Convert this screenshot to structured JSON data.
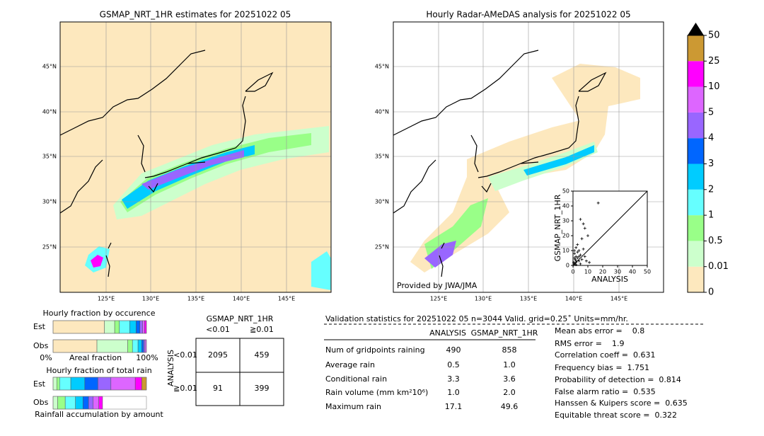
{
  "left_map": {
    "title": "GSMAP_NRT_1HR estimates for 20251022 05",
    "lat_labels": [
      "45°N",
      "40°N",
      "35°N",
      "30°N",
      "25°N"
    ],
    "lon_labels": [
      "125°E",
      "130°E",
      "135°E",
      "140°E",
      "145°E"
    ]
  },
  "right_map": {
    "title": "Hourly Radar-AMeDAS analysis for 20251022 05",
    "lat_labels": [
      "45°N",
      "40°N",
      "35°N",
      "30°N",
      "25°N"
    ],
    "lon_labels": [
      "125°E",
      "130°E",
      "135°E",
      "140°E",
      "145°E"
    ],
    "credit": "Provided by JWA/JMA"
  },
  "colorbar": {
    "labels": [
      0,
      0.01,
      0.5,
      1,
      2,
      3,
      4,
      5,
      10,
      25,
      50
    ],
    "colors": [
      "#fde8be",
      "#ccffcc",
      "#99ff88",
      "#66ffff",
      "#00ccff",
      "#0066ff",
      "#9966ff",
      "#dd66ff",
      "#ff00ff",
      "#cc9933"
    ]
  },
  "scatter": {
    "xlabel": "ANALYSIS",
    "ylabel": "GSMAP_NRT_1HR",
    "xlim": [
      0,
      50
    ],
    "ylim": [
      0,
      50
    ],
    "xticks": [
      0,
      10,
      20,
      30,
      40,
      50
    ],
    "yticks": [
      0,
      10,
      20,
      30,
      40,
      50
    ],
    "x": [
      17,
      8,
      7,
      5,
      10,
      6,
      3,
      2,
      4,
      1,
      2,
      5,
      3,
      1,
      6,
      4,
      2,
      8,
      1,
      3,
      7,
      2,
      0.5,
      1.5,
      9,
      11,
      5,
      2,
      4,
      1
    ],
    "y": [
      42,
      25,
      28,
      31,
      20,
      18,
      14,
      12,
      10,
      8,
      6,
      7,
      9,
      5,
      4,
      3,
      2,
      6,
      1,
      5,
      11,
      3,
      2,
      4,
      3,
      2,
      1,
      0.5,
      6,
      10
    ]
  },
  "fraction_occurrence": {
    "title": "Hourly fraction by occurence",
    "rows": [
      {
        "label": "Est",
        "values": [
          55,
          11,
          5,
          11,
          7,
          4,
          3,
          2,
          2,
          0
        ]
      },
      {
        "label": "Obs",
        "values": [
          47,
          33,
          5,
          6,
          4,
          2,
          1.5,
          1.5,
          0,
          0
        ]
      }
    ],
    "axis_left": "0%",
    "axis_label": "Areal fraction",
    "axis_right": "100%"
  },
  "fraction_total": {
    "title": "Hourly fraction of total rain",
    "rows": [
      {
        "label": "Est",
        "values": [
          0,
          4,
          3,
          12,
          15,
          14,
          14,
          26,
          7,
          5
        ]
      },
      {
        "label": "Obs",
        "values": [
          0,
          5,
          8,
          11,
          8,
          6,
          5,
          6,
          4,
          0
        ]
      }
    ],
    "footer": "Rainfall accumulation by amount"
  },
  "contingency": {
    "title": "GSMAP_NRT_1HR",
    "col_headers": [
      "<0.01",
      "≧0.01"
    ],
    "row_axis": "ANALYSIS",
    "row_headers": [
      "<0.01",
      "≧0.01"
    ],
    "cells": [
      [
        "2095",
        "459"
      ],
      [
        "91",
        "399"
      ]
    ]
  },
  "validation": {
    "header": "Validation statistics for 20251022 05  n=3044 Valid. grid=0.25˚ Units=mm/hr.",
    "columns": [
      "ANALYSIS",
      "GSMAP_NRT_1HR"
    ],
    "rows": [
      {
        "label": "Num of gridpoints raining",
        "values": [
          "490",
          "858"
        ]
      },
      {
        "label": "Average rain",
        "values": [
          "0.5",
          "1.0"
        ]
      },
      {
        "label": "Conditional rain",
        "values": [
          "3.3",
          "3.6"
        ]
      },
      {
        "label": "Rain volume (mm km²10⁶)",
        "values": [
          "1.0",
          "2.0"
        ]
      },
      {
        "label": "Maximum rain",
        "values": [
          "17.1",
          "49.6"
        ]
      }
    ],
    "scores": [
      "Mean abs error =    0.8",
      "RMS error =    1.9",
      "Correlation coeff =  0.631",
      "Frequency bias =  1.751",
      "Probability of detection =  0.814",
      "False alarm ratio =  0.535",
      "Hanssen & Kuipers score =  0.635",
      "Equitable threat score =  0.322"
    ]
  }
}
